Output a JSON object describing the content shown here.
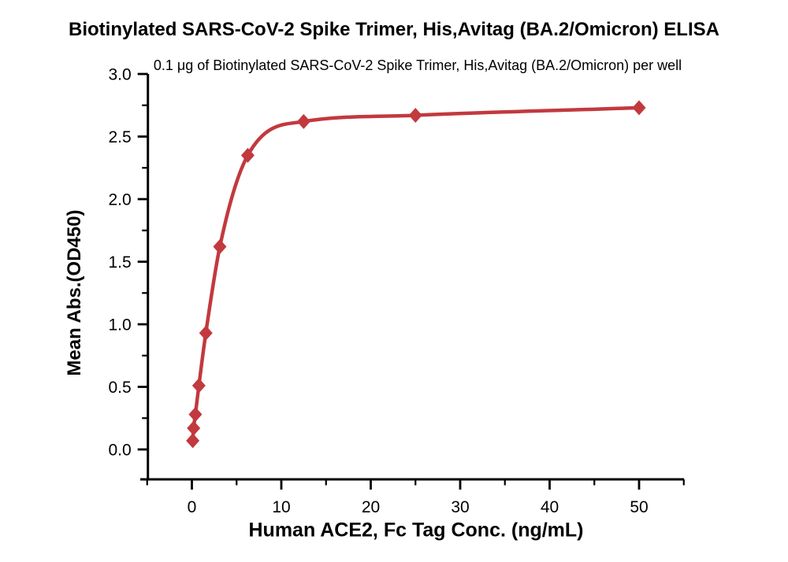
{
  "chart_data": {
    "type": "scatter",
    "title": "Biotinylated SARS-CoV-2 Spike Trimer, His,Avitag (BA.2/Omicron) ELISA",
    "subtitle": "0.1 μg of Biotinylated SARS-CoV-2 Spike Trimer, His,Avitag (BA.2/Omicron) per well",
    "xlabel": "Human ACE2, Fc Tag Conc. (ng/mL)",
    "ylabel": "Mean Abs.(OD450)",
    "x": [
      0.098,
      0.195,
      0.391,
      0.781,
      1.563,
      3.125,
      6.25,
      12.5,
      25,
      50
    ],
    "y": [
      0.07,
      0.17,
      0.28,
      0.51,
      0.93,
      1.62,
      2.35,
      2.62,
      2.67,
      2.73
    ],
    "xlim": [
      -5.8,
      55.2
    ],
    "ylim": [
      -0.24,
      3.0
    ],
    "x_major_ticks": [
      0,
      10,
      20,
      30,
      40,
      50
    ],
    "x_major_tick_labels": [
      "0",
      "10",
      "20",
      "30",
      "40",
      "50"
    ],
    "x_minor_ticks": [
      -5,
      5,
      15,
      25,
      35,
      45,
      55
    ],
    "y_major_ticks": [
      0.0,
      0.5,
      1.0,
      1.5,
      2.0,
      2.5,
      3.0
    ],
    "y_major_tick_labels": [
      "0.0",
      "0.5",
      "1.0",
      "1.5",
      "2.0",
      "2.5",
      "3.0"
    ],
    "y_minor_ticks": [
      0.25,
      0.75,
      1.25,
      1.75,
      2.25,
      2.75
    ],
    "marker": "diamond",
    "grid": false,
    "legend": false,
    "colors": {
      "line": "#C2393E",
      "marker": "#C2393E",
      "axis": "#000000",
      "text": "#000000",
      "background": "#FFFFFF"
    }
  }
}
